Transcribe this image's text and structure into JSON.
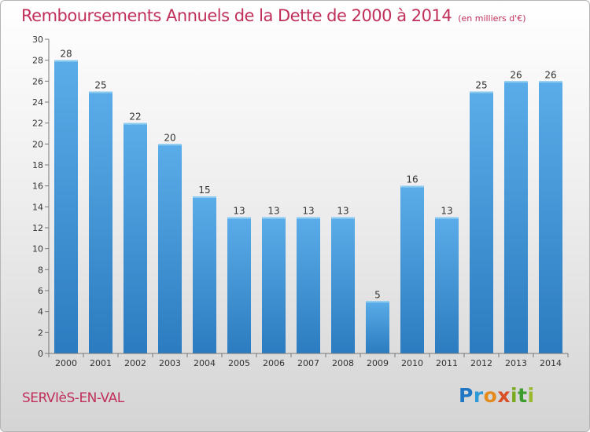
{
  "title": "Remboursements Annuels de la Dette de 2000 à 2014",
  "subtitle": "(en milliers d'€)",
  "city": "SERVIèS-EN-VAL",
  "logo": {
    "letters": [
      "P",
      "r",
      "o",
      "x",
      "i",
      "t",
      "i"
    ],
    "colors": [
      "#1f76c2",
      "#2d9ad8",
      "#e58a1c",
      "#d94f26",
      "#7aaa1e",
      "#3d9d2f",
      "#9ab82b"
    ]
  },
  "colors": {
    "title": "#c0305a",
    "bar_light": "#5aade8",
    "bar_dark": "#2b7bc0"
  },
  "chart_data": {
    "type": "bar",
    "categories": [
      "2000",
      "2001",
      "2002",
      "2003",
      "2004",
      "2005",
      "2006",
      "2007",
      "2008",
      "2009",
      "2010",
      "2011",
      "2012",
      "2013",
      "2014"
    ],
    "values": [
      28,
      25,
      22,
      20,
      15,
      13,
      13,
      13,
      13,
      5,
      16,
      13,
      25,
      26,
      26
    ],
    "title": "Remboursements Annuels de la Dette de 2000 à 2014",
    "xlabel": "",
    "ylabel": "",
    "ylim": [
      0,
      30
    ],
    "yticks": [
      0,
      2,
      4,
      6,
      8,
      10,
      12,
      14,
      16,
      18,
      20,
      22,
      24,
      26,
      28,
      30
    ],
    "grid": false,
    "legend": "none"
  }
}
